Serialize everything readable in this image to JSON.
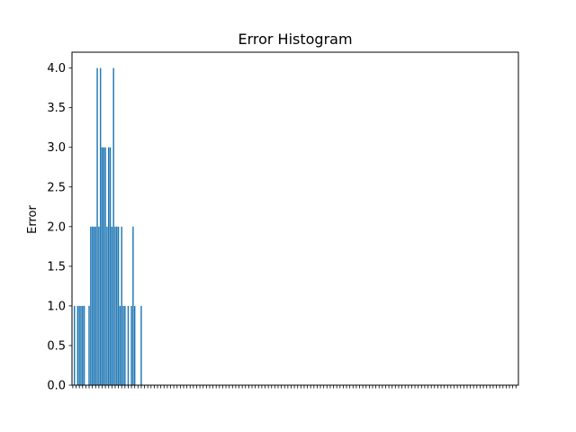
{
  "chart_data": {
    "type": "bar",
    "title": "Error Histogram",
    "xlabel": "",
    "ylabel": "Error",
    "ylim": [
      0,
      4.2
    ],
    "yticks": [
      0.0,
      0.5,
      1.0,
      1.5,
      2.0,
      2.5,
      3.0,
      3.5,
      4.0
    ],
    "ytick_labels": [
      "0.0",
      "0.5",
      "1.0",
      "1.5",
      "2.0",
      "2.5",
      "3.0",
      "3.5",
      "4.0"
    ],
    "grid": false,
    "legend": false,
    "bar_color": "#1f77b4",
    "values": [
      0,
      1,
      0,
      1,
      1,
      1,
      1,
      1,
      0,
      0,
      1,
      2,
      2,
      2,
      2,
      4,
      2,
      4,
      3,
      3,
      3,
      2,
      3,
      3,
      2,
      4,
      2,
      2,
      2,
      1,
      2,
      1,
      1,
      0,
      1,
      0,
      1,
      2,
      1,
      0,
      0,
      0,
      1,
      0,
      0,
      0,
      0,
      0,
      0,
      0,
      0,
      0,
      0,
      0,
      0,
      0,
      0,
      0,
      0,
      0,
      0,
      0,
      0,
      0,
      0,
      0,
      0,
      0,
      0,
      0,
      0,
      0,
      0,
      0,
      0,
      0,
      0,
      0,
      0,
      0,
      0,
      0,
      0,
      0,
      0,
      0,
      0,
      0,
      0,
      0,
      0,
      0,
      0,
      0,
      0,
      0,
      0,
      0,
      0,
      0,
      0,
      0,
      0,
      0,
      0,
      0,
      0,
      0,
      0,
      0,
      0,
      0,
      0,
      0,
      0,
      0,
      0,
      0,
      0,
      0,
      0,
      0,
      0,
      0,
      0,
      0,
      0,
      0,
      0,
      0,
      0,
      0,
      0,
      0,
      0,
      0,
      0,
      0,
      0,
      0,
      0,
      0,
      0,
      0,
      0,
      0,
      0,
      0,
      0,
      0,
      0,
      0,
      0,
      0,
      0,
      0,
      0,
      0,
      0,
      0,
      0,
      0,
      0,
      0,
      0,
      0,
      0,
      0,
      0,
      0,
      0,
      0,
      0,
      0,
      0,
      0,
      0,
      0,
      0,
      0,
      0,
      0,
      0,
      0,
      0,
      0,
      0,
      0,
      0,
      0,
      0,
      0,
      0,
      0,
      0,
      0,
      0,
      0,
      0,
      0,
      0,
      0,
      0,
      0,
      0,
      0,
      0,
      0,
      0,
      0,
      0,
      0,
      0,
      0,
      0,
      0,
      0,
      0,
      0,
      0,
      0,
      0,
      0,
      0,
      0,
      0,
      0,
      0,
      0,
      0,
      0,
      0,
      0,
      0,
      0,
      0,
      0,
      0,
      0,
      0,
      0,
      0,
      0,
      0,
      0,
      0,
      0,
      0,
      0,
      0,
      0,
      0,
      0,
      0,
      0,
      0,
      0,
      0,
      0,
      0,
      0,
      0,
      0,
      0,
      0,
      0,
      0,
      0,
      0,
      0,
      0,
      0,
      0,
      0
    ]
  }
}
